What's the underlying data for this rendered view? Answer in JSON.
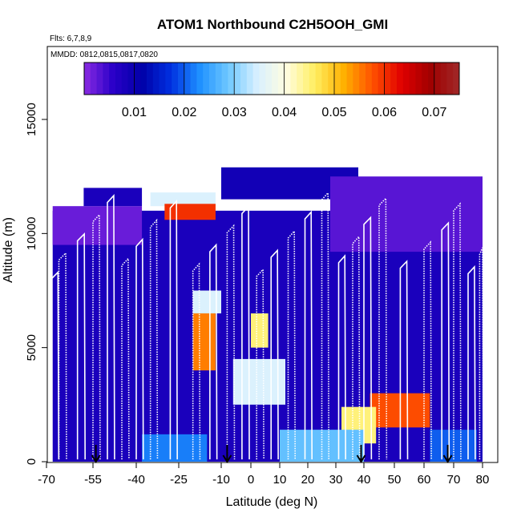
{
  "chart_data": {
    "type": "heatmap",
    "title": "ATOM1 Northbound C2H5OOH_GMI",
    "subtitle_flights": "Flts: 6,7,8,9",
    "subtitle_dates": "MMDD: 0812,0815,0817,0820",
    "xlabel": "Latitude (deg N)",
    "ylabel": "Altitude (m)",
    "xlim": [
      -70,
      80
    ],
    "ylim": [
      0,
      17500
    ],
    "x_ticks": [
      -70,
      -55,
      -40,
      -25,
      -10,
      0,
      10,
      20,
      30,
      40,
      50,
      60,
      70,
      80
    ],
    "x_tick_labels": [
      "-70",
      "-55",
      "-40",
      "-25",
      "-10",
      "0",
      "10",
      "20",
      "30",
      "40",
      "50",
      "60",
      "70",
      "80"
    ],
    "y_ticks": [
      0,
      5000,
      10000,
      15000
    ],
    "y_tick_labels": [
      "0",
      "5000",
      "10000",
      "15000"
    ],
    "colorbar": {
      "range": [
        0.0,
        0.075
      ],
      "ticks": [
        0.01,
        0.02,
        0.03,
        0.04,
        0.05,
        0.06,
        0.07
      ],
      "tick_labels": [
        "0.01",
        "0.02",
        "0.03",
        "0.04",
        "0.05",
        "0.06",
        "0.07"
      ],
      "colors": [
        "#8a2be2",
        "#2a00c8",
        "#0000a8",
        "#0030e0",
        "#1e90ff",
        "#6fc8ff",
        "#d8f0ff",
        "#fffde0",
        "#ffee60",
        "#ffb000",
        "#ff5000",
        "#e00000",
        "#a00000",
        "#a02828"
      ]
    },
    "arrow_latitudes": [
      -54,
      -8,
      39,
      68
    ],
    "regions": [
      {
        "x": [
          -68,
          80
        ],
        "y": [
          0,
          11000
        ],
        "value": 0.008
      },
      {
        "x": [
          -68,
          -38
        ],
        "y": [
          9500,
          11200
        ],
        "value": 0.002
      },
      {
        "x": [
          -58,
          -38
        ],
        "y": [
          11200,
          12000
        ],
        "value": 0.008
      },
      {
        "x": [
          -35,
          -12
        ],
        "y": [
          11200,
          11800
        ],
        "value": 0.035
      },
      {
        "x": [
          -30,
          -12
        ],
        "y": [
          10600,
          11300
        ],
        "value": 0.06
      },
      {
        "x": [
          -10,
          38
        ],
        "y": [
          11500,
          12900
        ],
        "value": 0.009
      },
      {
        "x": [
          28,
          80
        ],
        "y": [
          9200,
          12500
        ],
        "value": 0.003
      },
      {
        "x": [
          -20,
          -12
        ],
        "y": [
          4000,
          6500
        ],
        "value": 0.055
      },
      {
        "x": [
          -20,
          -10
        ],
        "y": [
          6500,
          7500
        ],
        "value": 0.035
      },
      {
        "x": [
          0,
          6
        ],
        "y": [
          5000,
          6500
        ],
        "value": 0.045
      },
      {
        "x": [
          -6,
          12
        ],
        "y": [
          2500,
          4500
        ],
        "value": 0.035
      },
      {
        "x": [
          42,
          62
        ],
        "y": [
          1500,
          3000
        ],
        "value": 0.058
      },
      {
        "x": [
          32,
          44
        ],
        "y": [
          800,
          2400
        ],
        "value": 0.045
      },
      {
        "x": [
          10,
          40
        ],
        "y": [
          0,
          1400
        ],
        "value": 0.028
      },
      {
        "x": [
          -38,
          -15
        ],
        "y": [
          0,
          1200
        ],
        "value": 0.022
      },
      {
        "x": [
          62,
          78
        ],
        "y": [
          0,
          1400
        ],
        "value": 0.02
      }
    ]
  }
}
